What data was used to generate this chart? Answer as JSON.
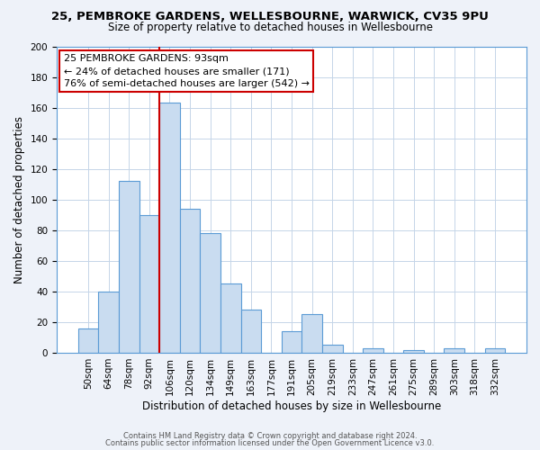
{
  "title_line1": "25, PEMBROKE GARDENS, WELLESBOURNE, WARWICK, CV35 9PU",
  "title_line2": "Size of property relative to detached houses in Wellesbourne",
  "xlabel": "Distribution of detached houses by size in Wellesbourne",
  "ylabel": "Number of detached properties",
  "bar_labels": [
    "50sqm",
    "64sqm",
    "78sqm",
    "92sqm",
    "106sqm",
    "120sqm",
    "134sqm",
    "149sqm",
    "163sqm",
    "177sqm",
    "191sqm",
    "205sqm",
    "219sqm",
    "233sqm",
    "247sqm",
    "261sqm",
    "275sqm",
    "289sqm",
    "303sqm",
    "318sqm",
    "332sqm"
  ],
  "bar_values": [
    16,
    40,
    112,
    90,
    163,
    94,
    78,
    45,
    28,
    0,
    14,
    25,
    5,
    0,
    3,
    0,
    2,
    0,
    3,
    0,
    3
  ],
  "bar_color": "#c9dcf0",
  "bar_edge_color": "#5b9bd5",
  "vline_color": "#cc0000",
  "vline_xindex": 3,
  "ylim": [
    0,
    200
  ],
  "yticks": [
    0,
    20,
    40,
    60,
    80,
    100,
    120,
    140,
    160,
    180,
    200
  ],
  "annotation_text_line1": "25 PEMBROKE GARDENS: 93sqm",
  "annotation_text_line2": "← 24% of detached houses are smaller (171)",
  "annotation_text_line3": "76% of semi-detached houses are larger (542) →",
  "footer_line1": "Contains HM Land Registry data © Crown copyright and database right 2024.",
  "footer_line2": "Contains public sector information licensed under the Open Government Licence v3.0.",
  "background_color": "#eef2f9",
  "plot_background_color": "#ffffff",
  "grid_color": "#c5d5e8",
  "title1_fontsize": 9.5,
  "title2_fontsize": 8.5,
  "xlabel_fontsize": 8.5,
  "ylabel_fontsize": 8.5,
  "tick_fontsize": 7.5,
  "annotation_fontsize": 8.0,
  "footer_fontsize": 6.0
}
